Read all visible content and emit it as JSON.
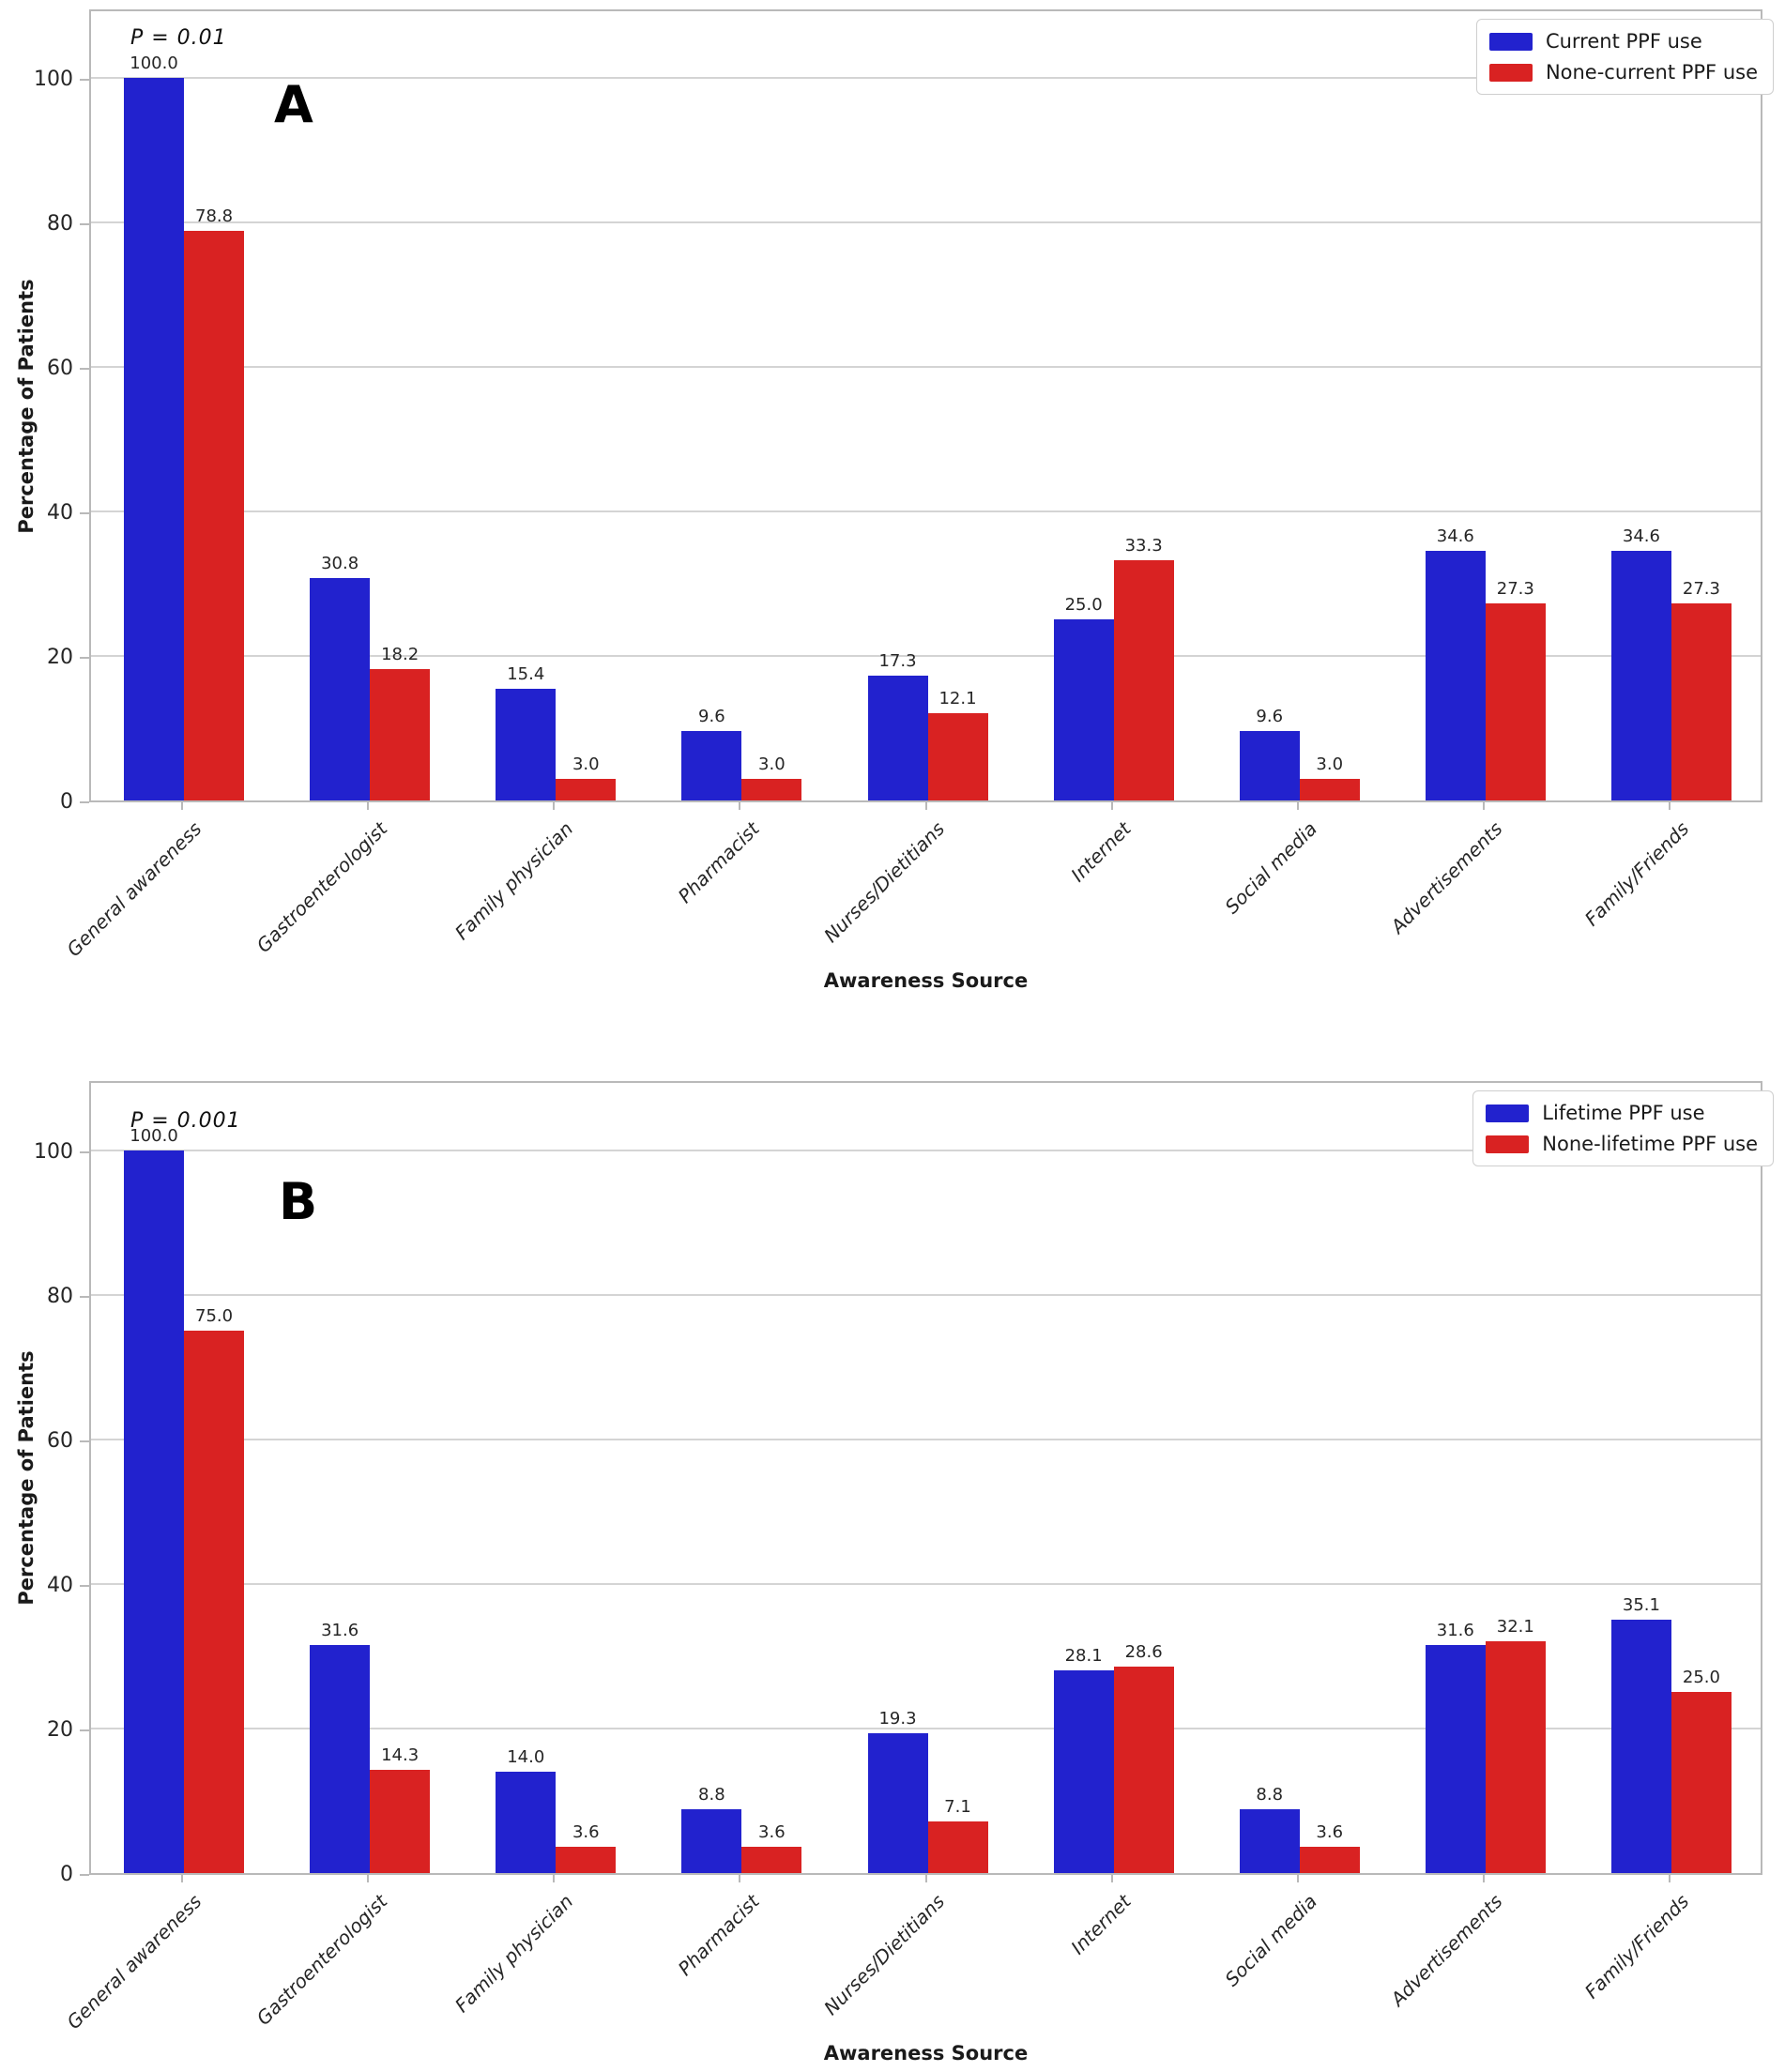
{
  "figure": {
    "ylabel": "Percentage of Patients",
    "xlabel": "Awareness Source",
    "yticks": [
      0,
      20,
      40,
      60,
      80,
      100
    ],
    "colors": {
      "series_blue": "#2222CE",
      "series_red": "#D92222",
      "grid": "#d4d4d4",
      "spine": "#b9b9b9"
    }
  },
  "chart_data": [
    {
      "type": "bar",
      "panel_letter": "A",
      "annotation": "P = 0.01",
      "title": "",
      "xlabel": "Awareness Source",
      "ylabel": "Percentage of Patients",
      "categories": [
        "General awareness",
        "Gastroenterologist",
        "Family physician",
        "Pharmacist",
        "Nurses/Dietitians",
        "Internet",
        "Social media",
        "Advertisements",
        "Family/Friends"
      ],
      "series": [
        {
          "name": "Current PPF use",
          "color": "#2222CE",
          "values": [
            100.0,
            30.8,
            15.4,
            9.6,
            17.3,
            25.0,
            9.6,
            34.6,
            34.6
          ],
          "value_labels": [
            "100.0",
            "30.8",
            "15.4",
            "9.6",
            "17.3",
            "25.0",
            "9.6",
            "34.6",
            "34.6"
          ]
        },
        {
          "name": "None-current PPF use",
          "color": "#D92222",
          "values": [
            78.8,
            18.2,
            3.0,
            3.0,
            12.1,
            33.3,
            3.0,
            27.3,
            27.3
          ],
          "value_labels": [
            "78.8",
            "18.2",
            "3.0",
            "3.0",
            "12.1",
            "33.3",
            "3.0",
            "27.3",
            "27.3"
          ]
        }
      ],
      "yticks": [
        0,
        20,
        40,
        60,
        80,
        100
      ],
      "ylim": [
        0,
        110
      ],
      "grid": true,
      "legend_position": "upper right"
    },
    {
      "type": "bar",
      "panel_letter": "B",
      "annotation": "P = 0.001",
      "title": "",
      "xlabel": "Awareness Source",
      "ylabel": "Percentage of Patients",
      "categories": [
        "General awareness",
        "Gastroenterologist",
        "Family physician",
        "Pharmacist",
        "Nurses/Dietitians",
        "Internet",
        "Social media",
        "Advertisements",
        "Family/Friends"
      ],
      "series": [
        {
          "name": "Lifetime PPF use",
          "color": "#2222CE",
          "values": [
            100.0,
            31.6,
            14.0,
            8.8,
            19.3,
            28.1,
            8.8,
            31.6,
            35.1
          ],
          "value_labels": [
            "100.0",
            "31.6",
            "14.0",
            "8.8",
            "19.3",
            "28.1",
            "8.8",
            "31.6",
            "35.1"
          ]
        },
        {
          "name": "None-lifetime PPF use",
          "color": "#D92222",
          "values": [
            75.0,
            14.3,
            3.6,
            3.6,
            7.1,
            28.6,
            3.6,
            32.1,
            25.0
          ],
          "value_labels": [
            "75.0",
            "14.3",
            "3.6",
            "3.6",
            "7.1",
            "28.6",
            "3.6",
            "32.1",
            "25.0"
          ]
        }
      ],
      "yticks": [
        0,
        20,
        40,
        60,
        80,
        100
      ],
      "ylim": [
        0,
        110
      ],
      "grid": true,
      "legend_position": "upper right"
    }
  ]
}
